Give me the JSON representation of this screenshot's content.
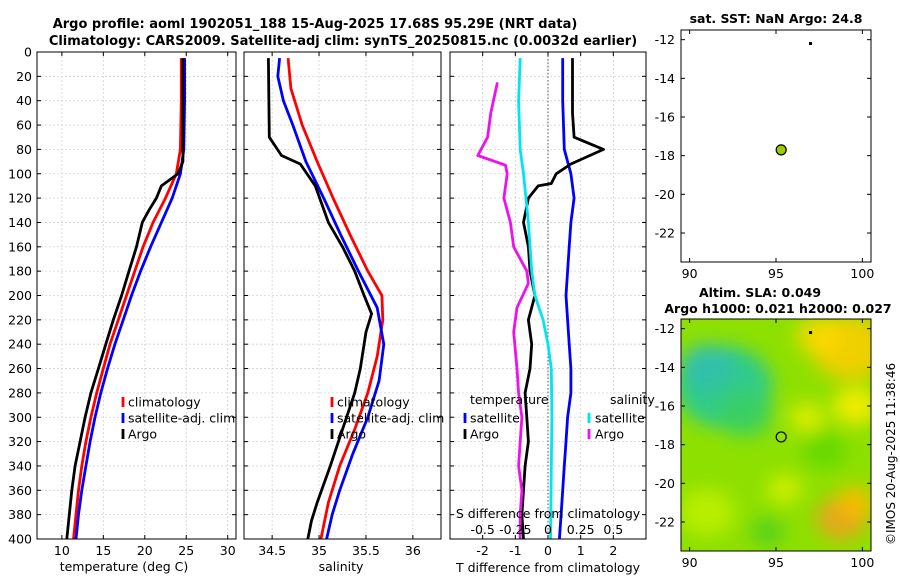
{
  "header": {
    "line1": "Argo profile: aoml 1902051_188 15-Aug-2025 17.68S 95.29E (NRT data)",
    "line2": "Climatology: CARS2009. Satellite-adj clim: synTS_20250815.nc (0.0032d earlier)"
  },
  "colors": {
    "climatology": "#ff0000",
    "satellite": "#0000ff",
    "argo": "#000000",
    "sal_sat": "#00e5ee",
    "sal_argo": "#ee11ee"
  },
  "chart_data": [
    {
      "type": "line",
      "id": "temperature",
      "xlabel": "temperature (deg C)",
      "ylabel": "",
      "xlim": [
        7,
        31
      ],
      "ylim": [
        400,
        0
      ],
      "xticks": [
        10,
        15,
        20,
        25,
        30
      ],
      "yticks": [
        0,
        20,
        40,
        60,
        80,
        100,
        120,
        140,
        160,
        180,
        200,
        220,
        240,
        260,
        280,
        300,
        320,
        340,
        360,
        380,
        400
      ],
      "legend": [
        "climatology",
        "satellite-adj. clim",
        "Argo"
      ],
      "series": [
        {
          "name": "climatology",
          "color": "#ff0000",
          "points": [
            [
              24.4,
              5
            ],
            [
              24.4,
              40
            ],
            [
              24.3,
              80
            ],
            [
              23.8,
              100
            ],
            [
              22.5,
              120
            ],
            [
              21,
              140
            ],
            [
              19.8,
              160
            ],
            [
              18.8,
              180
            ],
            [
              17.8,
              200
            ],
            [
              16.8,
              220
            ],
            [
              15.8,
              240
            ],
            [
              15,
              260
            ],
            [
              14.2,
              280
            ],
            [
              13.5,
              300
            ],
            [
              12.9,
              320
            ],
            [
              12.4,
              340
            ],
            [
              12,
              360
            ],
            [
              11.7,
              380
            ],
            [
              11.4,
              400
            ]
          ]
        },
        {
          "name": "satellite-adj. clim",
          "color": "#0000ff",
          "points": [
            [
              24.8,
              5
            ],
            [
              24.8,
              40
            ],
            [
              24.7,
              80
            ],
            [
              24.3,
              100
            ],
            [
              23.3,
              120
            ],
            [
              22,
              140
            ],
            [
              20.7,
              160
            ],
            [
              19.5,
              180
            ],
            [
              18.4,
              200
            ],
            [
              17.4,
              220
            ],
            [
              16.4,
              240
            ],
            [
              15.5,
              260
            ],
            [
              14.7,
              280
            ],
            [
              14,
              300
            ],
            [
              13.4,
              320
            ],
            [
              12.9,
              340
            ],
            [
              12.4,
              360
            ],
            [
              12,
              380
            ],
            [
              11.7,
              400
            ]
          ]
        },
        {
          "name": "Argo",
          "color": "#000000",
          "points": [
            [
              24.6,
              5
            ],
            [
              24.6,
              90
            ],
            [
              24,
              100
            ],
            [
              22,
              110
            ],
            [
              21.4,
              120
            ],
            [
              20.5,
              130
            ],
            [
              19.7,
              140
            ],
            [
              19,
              160
            ],
            [
              18.1,
              180
            ],
            [
              17.2,
              200
            ],
            [
              16.2,
              220
            ],
            [
              15.3,
              240
            ],
            [
              14.4,
              260
            ],
            [
              13.5,
              280
            ],
            [
              12.8,
              300
            ],
            [
              12.2,
              320
            ],
            [
              11.6,
              340
            ],
            [
              11.2,
              360
            ],
            [
              10.9,
              380
            ],
            [
              10.6,
              400
            ]
          ]
        }
      ]
    },
    {
      "type": "line",
      "id": "salinity",
      "xlabel": "salinity",
      "ylabel": "",
      "xlim": [
        34.2,
        36.3
      ],
      "ylim": [
        400,
        0
      ],
      "xticks": [
        34.5,
        35,
        35.5,
        36
      ],
      "tick_labels": [
        "34.5",
        "35",
        "35.5",
        "36"
      ],
      "legend": [
        "climatology",
        "satellite-adj. clim",
        "Argo"
      ],
      "series": [
        {
          "name": "climatology",
          "color": "#ff0000",
          "points": [
            [
              34.67,
              5
            ],
            [
              34.7,
              30
            ],
            [
              34.82,
              60
            ],
            [
              34.98,
              90
            ],
            [
              35.15,
              120
            ],
            [
              35.33,
              150
            ],
            [
              35.52,
              180
            ],
            [
              35.67,
              200
            ],
            [
              35.68,
              220
            ],
            [
              35.62,
              250
            ],
            [
              35.52,
              280
            ],
            [
              35.38,
              310
            ],
            [
              35.22,
              340
            ],
            [
              35.1,
              370
            ],
            [
              35.02,
              400
            ]
          ]
        },
        {
          "name": "satellite-adj. clim",
          "color": "#0000ff",
          "points": [
            [
              34.58,
              5
            ],
            [
              34.56,
              20
            ],
            [
              34.62,
              40
            ],
            [
              34.72,
              60
            ],
            [
              34.86,
              90
            ],
            [
              35.05,
              120
            ],
            [
              35.23,
              150
            ],
            [
              35.42,
              180
            ],
            [
              35.62,
              210
            ],
            [
              35.69,
              240
            ],
            [
              35.64,
              270
            ],
            [
              35.52,
              300
            ],
            [
              35.36,
              330
            ],
            [
              35.22,
              360
            ],
            [
              35.14,
              380
            ],
            [
              35.08,
              400
            ]
          ]
        },
        {
          "name": "Argo",
          "color": "#000000",
          "points": [
            [
              34.46,
              5
            ],
            [
              34.47,
              70
            ],
            [
              34.6,
              85
            ],
            [
              34.8,
              92
            ],
            [
              34.96,
              110
            ],
            [
              35.1,
              140
            ],
            [
              35.25,
              160
            ],
            [
              35.38,
              180
            ],
            [
              35.48,
              200
            ],
            [
              35.56,
              215
            ],
            [
              35.5,
              230
            ],
            [
              35.44,
              260
            ],
            [
              35.38,
              280
            ],
            [
              35.25,
              310
            ],
            [
              35.12,
              340
            ],
            [
              34.98,
              370
            ],
            [
              34.92,
              385
            ],
            [
              34.88,
              400
            ]
          ]
        }
      ]
    },
    {
      "type": "line",
      "id": "difference",
      "xlabel": "T difference from climatology",
      "top_label": "S difference from climatology",
      "xlim": [
        -3,
        3
      ],
      "ylim": [
        400,
        0
      ],
      "xticks": [
        -2,
        -1,
        0,
        1,
        2
      ],
      "top_ticks": [
        -0.5,
        -0.25,
        0,
        0.25,
        0.5
      ],
      "top_tick_labels": [
        "-0.5",
        "-0.25",
        "0",
        "0.25",
        "0.5"
      ],
      "legend_left_title": "temperature",
      "legend_right_title": "salinity",
      "legend_left": [
        "satellite",
        "Argo"
      ],
      "legend_right": [
        "satellite",
        "Argo"
      ],
      "series": [
        {
          "name": "T satellite",
          "color": "#0000ff",
          "points": [
            [
              0.45,
              5
            ],
            [
              0.45,
              40
            ],
            [
              0.5,
              80
            ],
            [
              0.7,
              100
            ],
            [
              0.8,
              120
            ],
            [
              0.7,
              140
            ],
            [
              0.65,
              160
            ],
            [
              0.6,
              180
            ],
            [
              0.55,
              200
            ],
            [
              0.6,
              220
            ],
            [
              0.65,
              240
            ],
            [
              0.7,
              260
            ],
            [
              0.7,
              280
            ],
            [
              0.6,
              300
            ],
            [
              0.55,
              320
            ],
            [
              0.5,
              340
            ],
            [
              0.45,
              360
            ],
            [
              0.4,
              380
            ],
            [
              0.35,
              400
            ]
          ]
        },
        {
          "name": "T Argo",
          "color": "#000000",
          "points": [
            [
              0.75,
              5
            ],
            [
              0.75,
              50
            ],
            [
              0.8,
              70
            ],
            [
              1.7,
              80
            ],
            [
              0.7,
              92
            ],
            [
              0.25,
              100
            ],
            [
              0.1,
              108
            ],
            [
              -0.3,
              110
            ],
            [
              -0.6,
              120
            ],
            [
              -0.75,
              140
            ],
            [
              -0.6,
              160
            ],
            [
              -0.55,
              180
            ],
            [
              -0.4,
              200
            ],
            [
              -0.6,
              220
            ],
            [
              -0.5,
              240
            ],
            [
              -0.55,
              260
            ],
            [
              -0.7,
              280
            ],
            [
              -0.65,
              300
            ],
            [
              -0.6,
              320
            ],
            [
              -0.7,
              340
            ],
            [
              -0.75,
              360
            ],
            [
              -0.8,
              380
            ],
            [
              -0.75,
              400
            ]
          ]
        },
        {
          "name": "S satellite",
          "color": "#00e5ee",
          "points": [
            [
              -0.85,
              5
            ],
            [
              -0.9,
              40
            ],
            [
              -0.85,
              80
            ],
            [
              -0.75,
              100
            ],
            [
              -0.6,
              140
            ],
            [
              -0.5,
              180
            ],
            [
              -0.4,
              200
            ],
            [
              -0.15,
              220
            ],
            [
              0.0,
              240
            ],
            [
              0.1,
              260
            ],
            [
              0.12,
              300
            ],
            [
              0.1,
              340
            ],
            [
              0.08,
              400
            ]
          ]
        },
        {
          "name": "S Argo",
          "color": "#ee11ee",
          "points": [
            [
              -1.55,
              25
            ],
            [
              -1.75,
              50
            ],
            [
              -1.85,
              70
            ],
            [
              -2.15,
              85
            ],
            [
              -1.3,
              93
            ],
            [
              -1.25,
              100
            ],
            [
              -1.35,
              120
            ],
            [
              -1.15,
              140
            ],
            [
              -1.05,
              160
            ],
            [
              -0.65,
              180
            ],
            [
              -0.6,
              190
            ],
            [
              -0.95,
              210
            ],
            [
              -1.05,
              230
            ],
            [
              -0.95,
              260
            ],
            [
              -0.9,
              280
            ],
            [
              -0.8,
              300
            ],
            [
              -0.85,
              320
            ],
            [
              -0.9,
              340
            ],
            [
              -0.8,
              360
            ],
            [
              -0.85,
              380
            ],
            [
              -0.85,
              400
            ]
          ]
        }
      ]
    },
    {
      "type": "scatter",
      "id": "sst",
      "title": "sat. SST: NaN Argo: 24.8",
      "xlim": [
        89.5,
        100.5
      ],
      "ylim": [
        -23.5,
        -11.5
      ],
      "xticks": [
        90,
        95,
        100
      ],
      "yticks": [
        -12,
        -14,
        -16,
        -18,
        -20,
        -22
      ],
      "points": [
        [
          95.3,
          -17.7
        ]
      ],
      "extra_points": [
        [
          97,
          -12.2
        ]
      ],
      "marker_color": "#9acd00"
    },
    {
      "type": "heatmap",
      "id": "sla",
      "title1": "Altim. SLA: 0.049",
      "title2": "Argo h1000: 0.021 h2000: 0.027",
      "xlim": [
        89.5,
        100.5
      ],
      "ylim": [
        -23.5,
        -11.5
      ],
      "xticks": [
        90,
        95,
        100
      ],
      "yticks": [
        -12,
        -14,
        -16,
        -18,
        -20,
        -22
      ],
      "points": [
        [
          95.3,
          -17.6
        ]
      ],
      "extra_points": [
        [
          97,
          -12.2
        ]
      ]
    }
  ],
  "stamp": "©IMOS 20-Aug-2025 11:38:46"
}
